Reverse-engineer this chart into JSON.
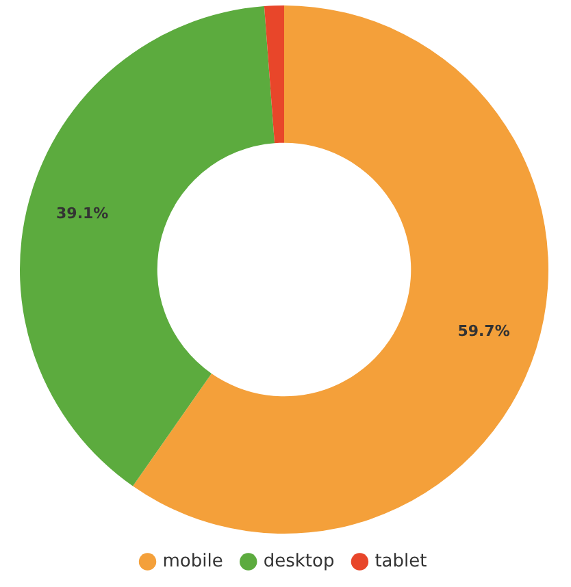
{
  "chart_data": {
    "type": "donut",
    "categories": [
      "mobile",
      "desktop",
      "tablet"
    ],
    "values": [
      59.7,
      39.1,
      1.2
    ],
    "colors": [
      "#f4a03a",
      "#5cab3e",
      "#e8462a"
    ],
    "value_labels": [
      "59.7%",
      "39.1%",
      null
    ],
    "legend": "bottom"
  }
}
